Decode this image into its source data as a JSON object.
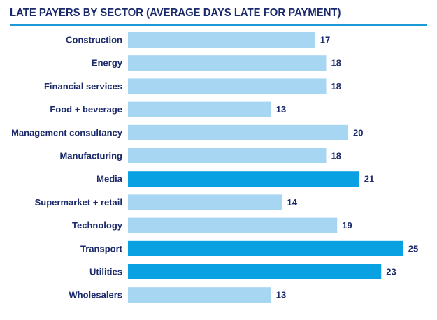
{
  "chart_data": {
    "type": "bar",
    "orientation": "horizontal",
    "title": "LATE PAYERS BY SECTOR (AVERAGE DAYS LATE FOR PAYMENT)",
    "xlabel": "",
    "ylabel": "",
    "xlim": [
      0,
      25
    ],
    "grid": false,
    "legend": "none",
    "categories": [
      "Construction",
      "Energy",
      "Financial services",
      "Food + beverage",
      "Management consultancy",
      "Manufacturing",
      "Media",
      "Supermarket + retail",
      "Technology",
      "Transport",
      "Utilities",
      "Wholesalers"
    ],
    "values": [
      17,
      18,
      18,
      13,
      20,
      18,
      21,
      14,
      19,
      25,
      23,
      13
    ],
    "highlighted": [
      false,
      false,
      false,
      false,
      false,
      false,
      true,
      false,
      false,
      true,
      true,
      false
    ],
    "colors": {
      "normal": "#a7d6f3",
      "highlight": "#0aa1e2",
      "text": "#1b2a6b",
      "rule": "#1b9ad6"
    }
  }
}
